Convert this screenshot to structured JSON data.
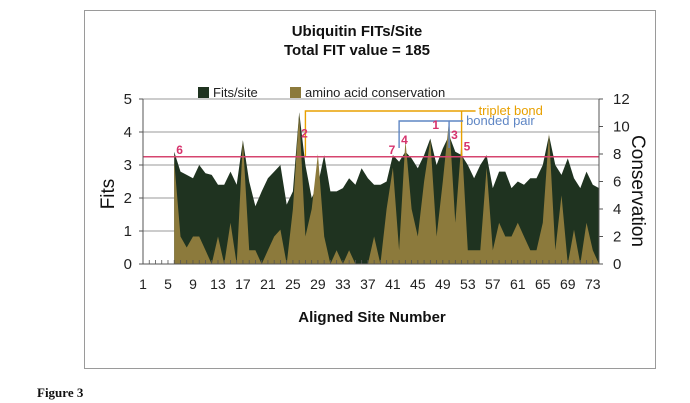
{
  "figure_caption": "Figure 3",
  "chart_data": {
    "type": "area",
    "title": "Ubiquitin FITs/Site",
    "subtitle": "Total FIT value = 185",
    "xlabel": "Aligned Site Number",
    "ylabel_left": "Fits",
    "ylabel_right": "Conservation",
    "ylim_left": [
      0,
      5
    ],
    "ylim_right": [
      0,
      12
    ],
    "yticks_left": [
      "0",
      "1",
      "2",
      "3",
      "4",
      "5"
    ],
    "yticks_right": [
      "0",
      "2",
      "4",
      "6",
      "8",
      "10",
      "12"
    ],
    "xticks": [
      "1",
      "5",
      "9",
      "13",
      "17",
      "21",
      "25",
      "29",
      "33",
      "37",
      "41",
      "45",
      "49",
      "53",
      "57",
      "61",
      "65",
      "69",
      "73"
    ],
    "grid": true,
    "legend_position": "top",
    "threshold_line": {
      "value": 3.25,
      "color": "#d6456f"
    },
    "x": [
      6,
      7,
      8,
      9,
      10,
      11,
      12,
      13,
      14,
      15,
      16,
      17,
      18,
      19,
      20,
      21,
      22,
      23,
      24,
      25,
      26,
      27,
      28,
      29,
      30,
      31,
      32,
      33,
      34,
      35,
      36,
      37,
      38,
      39,
      40,
      41,
      42,
      43,
      44,
      45,
      46,
      47,
      48,
      49,
      50,
      51,
      52,
      53,
      54,
      55,
      56,
      57,
      58,
      59,
      60,
      61,
      62,
      63,
      64,
      65,
      66,
      67,
      68,
      69,
      70,
      71,
      72,
      73,
      74
    ],
    "series": [
      {
        "name": "Fits/site",
        "color": "#1f3320",
        "axis": "left",
        "values": [
          3.4,
          2.8,
          2.7,
          2.6,
          3.0,
          2.75,
          2.7,
          2.4,
          2.4,
          2.8,
          2.4,
          3.75,
          2.5,
          1.75,
          2.2,
          2.6,
          2.8,
          3.0,
          1.8,
          2.2,
          4.6,
          3.0,
          2.0,
          2.4,
          3.3,
          2.2,
          2.2,
          2.3,
          2.6,
          2.4,
          2.9,
          2.6,
          2.4,
          2.4,
          2.5,
          3.3,
          3.1,
          3.4,
          3.2,
          2.9,
          3.3,
          3.8,
          3.0,
          3.5,
          3.9,
          3.4,
          3.3,
          3.0,
          2.6,
          3.0,
          3.3,
          2.3,
          2.8,
          2.8,
          2.3,
          2.5,
          2.4,
          2.6,
          2.6,
          3.0,
          3.9,
          3.0,
          2.7,
          3.2,
          2.6,
          2.3,
          2.8,
          2.4,
          2.3
        ]
      },
      {
        "name": "amino acid conservation",
        "color": "#8c7a3c",
        "axis": "right",
        "values": [
          7.5,
          2.0,
          1.2,
          2.0,
          2.0,
          1.0,
          0.0,
          2.0,
          0.0,
          3.0,
          0.0,
          9.0,
          1.0,
          1.0,
          0.0,
          1.0,
          2.0,
          2.5,
          0.0,
          4.0,
          11.0,
          2.0,
          4.0,
          8.0,
          2.0,
          0.0,
          1.0,
          0.0,
          1.0,
          0.0,
          0.0,
          0.0,
          2.0,
          0.0,
          4.0,
          7.0,
          1.0,
          9.0,
          4.0,
          2.0,
          6.0,
          9.0,
          2.0,
          6.0,
          10.5,
          3.0,
          9.0,
          1.0,
          1.0,
          1.0,
          7.0,
          1.0,
          3.0,
          2.0,
          2.0,
          3.0,
          2.0,
          1.0,
          1.0,
          3.0,
          9.5,
          1.0,
          5.0,
          0.0,
          2.5,
          0.0,
          3.0,
          1.0,
          0.0
        ]
      }
    ],
    "annotations": {
      "site_markers": [
        {
          "label": "6",
          "x": 6,
          "y": 3.25
        },
        {
          "label": "2",
          "x": 26,
          "y": 3.75
        },
        {
          "label": "7",
          "x": 40,
          "y": 3.25
        },
        {
          "label": "4",
          "x": 42,
          "y": 3.55
        },
        {
          "label": "1",
          "x": 47,
          "y": 4.0
        },
        {
          "label": "3",
          "x": 50,
          "y": 3.7
        },
        {
          "label": "5",
          "x": 52,
          "y": 3.35
        }
      ],
      "brackets": [
        {
          "label": "triplet bond",
          "color": "#e8a000",
          "from": 27,
          "to": 52
        },
        {
          "label": "bonded pair",
          "color": "#5f86c4",
          "from": 42,
          "to": 50
        }
      ]
    }
  }
}
